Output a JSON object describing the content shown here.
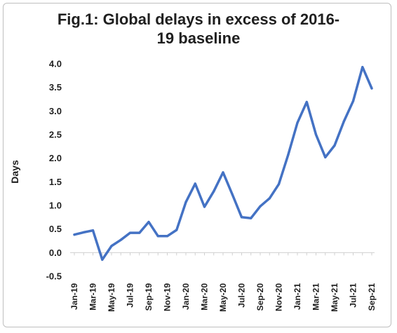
{
  "chart_data": {
    "type": "line",
    "title_line1": "Fig.1: Global delays in excess of 2016-",
    "title_line2": "19 baseline",
    "ylabel": "Days",
    "xlabel": "",
    "ylim": [
      -0.5,
      4.0
    ],
    "yticks": [
      "4.0",
      "3.5",
      "3.0",
      "2.5",
      "2.0",
      "1.5",
      "1.0",
      "0.5",
      "0.0",
      "-0.5"
    ],
    "ytick_values": [
      4.0,
      3.5,
      3.0,
      2.5,
      2.0,
      1.5,
      1.0,
      0.5,
      0.0,
      -0.5
    ],
    "grid": false,
    "line_color": "#4472c4",
    "x": [
      "Jan-19",
      "Feb-19",
      "Mar-19",
      "Apr-19",
      "May-19",
      "Jun-19",
      "Jul-19",
      "Aug-19",
      "Sep-19",
      "Oct-19",
      "Nov-19",
      "Dec-19",
      "Jan-20",
      "Feb-20",
      "Mar-20",
      "Apr-20",
      "May-20",
      "Jun-20",
      "Jul-20",
      "Aug-20",
      "Sep-20",
      "Oct-20",
      "Nov-20",
      "Dec-20",
      "Jan-21",
      "Feb-21",
      "Mar-21",
      "Apr-21",
      "May-21",
      "Jun-21",
      "Jul-21",
      "Aug-21",
      "Sep-21"
    ],
    "x_tick_labels": [
      "Jan-19",
      "Mar-19",
      "May-19",
      "Jul-19",
      "Sep-19",
      "Nov-19",
      "Jan-20",
      "Mar-20",
      "May-20",
      "Jul-20",
      "Sep-20",
      "Nov-20",
      "Jan-21",
      "Mar-21",
      "May-21",
      "Jul-21",
      "Sep-21"
    ],
    "values": [
      0.38,
      0.43,
      0.47,
      -0.15,
      0.14,
      0.27,
      0.42,
      0.42,
      0.65,
      0.35,
      0.35,
      0.48,
      1.07,
      1.46,
      0.97,
      1.3,
      1.7,
      1.23,
      0.75,
      0.73,
      0.98,
      1.15,
      1.45,
      2.07,
      2.75,
      3.19,
      2.5,
      2.02,
      2.27,
      2.78,
      3.21,
      3.93,
      3.48
    ]
  }
}
